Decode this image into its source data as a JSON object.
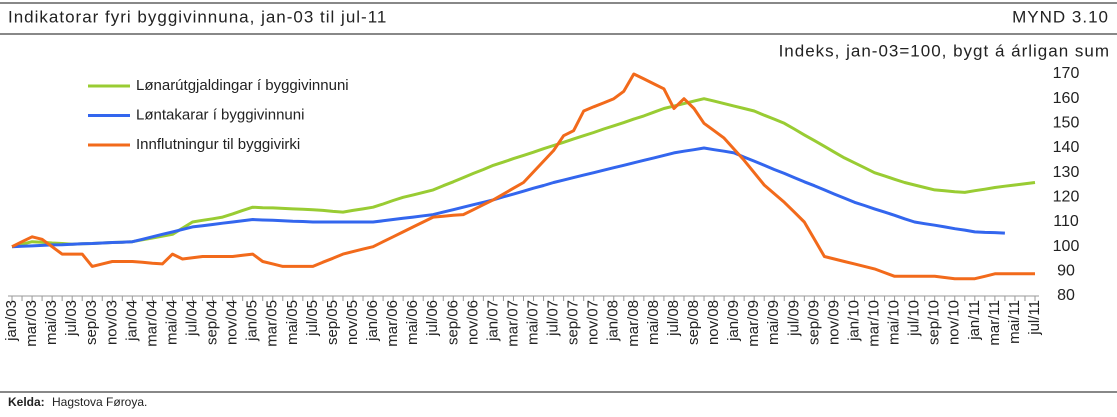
{
  "chart_data": {
    "type": "line",
    "title": "Indikatorar fyri byggivinnuna, jan-03 til jul-11",
    "figure_number": "MYND 3.10",
    "y_axis_label": "Indeks, jan-03=100, bygt á árligan sum",
    "source_label": "Kelda:",
    "source": "Hagstova Føroya.",
    "legend": "upper left",
    "categories": [
      "jan/03",
      null,
      "mar/03",
      null,
      "mai/03",
      null,
      "jul/03",
      null,
      "sep/03",
      null,
      "nov/03",
      null,
      "jan/04",
      null,
      "mar/04",
      null,
      "mai/04",
      null,
      "jul/04",
      null,
      "sep/04",
      null,
      "nov/04",
      null,
      "jan/05",
      null,
      "mar/05",
      null,
      "mai/05",
      null,
      "jul/05",
      null,
      "sep/05",
      null,
      "nov/05",
      null,
      "jan/06",
      null,
      "mar/06",
      null,
      "mai/06",
      null,
      "jul/06",
      null,
      "sep/06",
      null,
      "nov/06",
      null,
      "jan/07",
      null,
      "mar/07",
      null,
      "mai/07",
      null,
      "jul/07",
      null,
      "sep/07",
      null,
      "nov/07",
      null,
      "jan/08",
      null,
      "mar/08",
      null,
      "mai/08",
      null,
      "jul/08",
      null,
      "sep/08",
      null,
      "nov/08",
      null,
      "jan/09",
      null,
      "mar/09",
      null,
      "mai/09",
      null,
      "jul/09",
      null,
      "sep/09",
      null,
      "nov/09",
      null,
      "jan/10",
      null,
      "mar/10",
      null,
      "mai/10",
      null,
      "jul/10",
      null,
      "sep/10",
      null,
      "nov/10",
      null,
      "jan/11",
      null,
      "mar/11",
      null,
      "mai/11",
      null,
      "jul/11"
    ],
    "series": [
      {
        "name": "Lønarútgjaldingar í byggivinnuni",
        "color": "#99cc33",
        "values": [
          100,
          101,
          102,
          101.8,
          101.5,
          101.3,
          101,
          101.2,
          101.3,
          101.5,
          101.7,
          101.8,
          102,
          102.8,
          103.5,
          104.3,
          105,
          107.5,
          110,
          110.7,
          111.3,
          112,
          113.3,
          114.7,
          116,
          115.8,
          115.7,
          115.5,
          115.3,
          115.2,
          115,
          114.7,
          114.3,
          114,
          114.7,
          115.3,
          116,
          117.3,
          118.7,
          120,
          121,
          122,
          123,
          124.7,
          126.3,
          128,
          129.7,
          131.3,
          133,
          134.3,
          135.7,
          137,
          138.3,
          139.7,
          141,
          142.3,
          143.7,
          145,
          146.3,
          147.7,
          149,
          150.3,
          151.7,
          153,
          154.5,
          156,
          157,
          158,
          159,
          160,
          159,
          158,
          157,
          156,
          155,
          153.3,
          151.7,
          150,
          147.7,
          145.3,
          143,
          140.7,
          138.3,
          136,
          134,
          132,
          130,
          128.7,
          127.3,
          126,
          125,
          124,
          123,
          122.7,
          122.3,
          122,
          122.7,
          123.3,
          124,
          124.5,
          125,
          125.5,
          126
        ]
      },
      {
        "name": "Løntakarar í byggivinnuni",
        "color": "#3366ee",
        "values": [
          100,
          100.2,
          100.3,
          100.5,
          100.7,
          100.8,
          101,
          101.2,
          101.3,
          101.5,
          101.7,
          101.8,
          102,
          103,
          104,
          105,
          106,
          107,
          108,
          108.5,
          109,
          109.5,
          110,
          110.5,
          111,
          110.8,
          110.7,
          110.5,
          110.3,
          110.2,
          110,
          110,
          110,
          110,
          110,
          110,
          110,
          110.5,
          111,
          111.5,
          112,
          112.5,
          113,
          114,
          115,
          116,
          117,
          118,
          119,
          120.2,
          121.3,
          122.5,
          123.7,
          124.8,
          126,
          127,
          128,
          129,
          130,
          131,
          132,
          133,
          134,
          135,
          136,
          137,
          138,
          138.7,
          139.3,
          140,
          139.3,
          138.7,
          138,
          136.3,
          134.7,
          133,
          131.3,
          129.7,
          128,
          126.3,
          124.7,
          123,
          121.3,
          119.7,
          118,
          116.7,
          115.3,
          114,
          112.7,
          111.3,
          110,
          109.3,
          108.7,
          108,
          107.3,
          106.7,
          106,
          105.8,
          105.7,
          105.5,
          null,
          null,
          null
        ]
      },
      {
        "name": "Innflutningur til byggivirki",
        "color": "#f26a1b",
        "values": [
          100,
          102,
          104,
          103,
          100,
          97,
          97,
          97,
          92,
          93,
          94,
          94,
          94,
          93.7,
          93.3,
          93,
          97,
          95,
          95.5,
          96,
          96,
          96,
          96,
          96.5,
          97,
          94,
          93,
          92,
          92,
          92,
          92,
          93.7,
          95.3,
          97,
          98,
          99,
          100,
          102,
          104,
          106,
          108,
          110,
          112,
          112.3,
          112.7,
          113,
          115,
          117,
          119,
          121.3,
          123.7,
          126,
          130.3,
          134.7,
          139,
          145,
          147,
          155,
          156.7,
          158.3,
          160,
          163,
          170,
          168,
          166,
          164,
          156,
          160,
          156,
          150,
          147,
          144,
          139.5,
          135,
          130,
          125,
          121.5,
          118,
          114,
          110,
          103,
          96,
          95,
          94,
          93,
          92,
          91,
          89.5,
          88,
          88,
          88,
          88,
          88,
          87.5,
          87,
          87,
          87,
          88,
          89,
          89,
          89,
          89,
          89
        ]
      }
    ],
    "ylim": [
      80,
      170
    ],
    "yticks": [
      80,
      90,
      100,
      110,
      120,
      130,
      140,
      150,
      160,
      170
    ]
  }
}
